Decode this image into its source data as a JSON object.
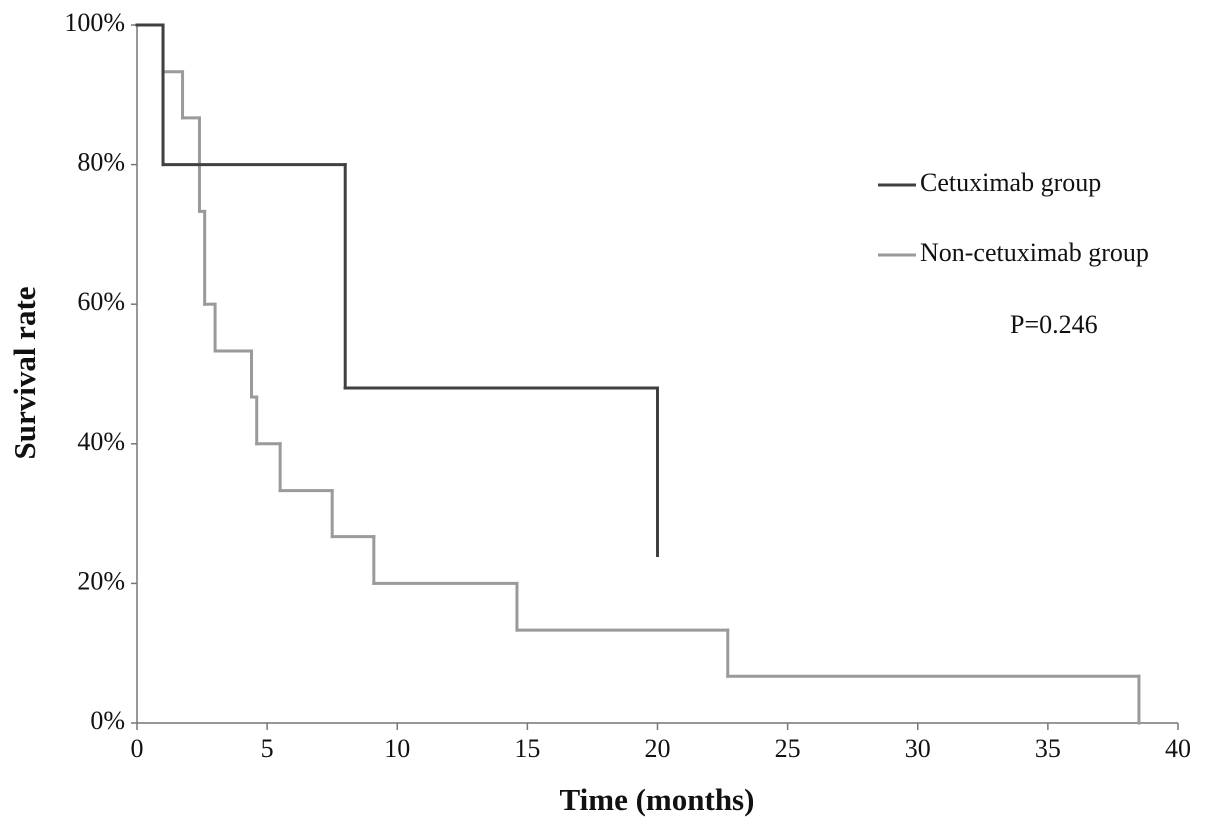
{
  "chart_data": {
    "type": "step",
    "x_label": "Time (months)",
    "y_label": "Survival rate",
    "annotation": "P=0.246",
    "xlim": [
      0,
      40
    ],
    "xticks": [
      0,
      5,
      10,
      15,
      20,
      25,
      30,
      35,
      40
    ],
    "ylim": [
      0,
      100
    ],
    "yticks": [
      {
        "value": 0,
        "label": "0%"
      },
      {
        "value": 20,
        "label": "20%"
      },
      {
        "value": 40,
        "label": "40%"
      },
      {
        "value": 60,
        "label": "60%"
      },
      {
        "value": 80,
        "label": "80%"
      },
      {
        "value": 100,
        "label": "100%"
      }
    ],
    "grid": false,
    "series": [
      {
        "name": "Non-cetuximab group",
        "color": "#9a9a9a",
        "x": [
          0,
          1,
          1.75,
          2.4,
          2.6,
          3,
          4.4,
          4.6,
          5.5,
          7.5,
          9.1,
          14.6,
          22.7,
          38.5
        ],
        "values": [
          100,
          93.3,
          86.7,
          73.3,
          60,
          53.3,
          46.7,
          40,
          33.3,
          26.7,
          20,
          13.3,
          6.7,
          0
        ]
      },
      {
        "name": "Cetuximab group",
        "color": "#404040",
        "x": [
          0,
          1,
          8,
          20
        ],
        "values": [
          100,
          80,
          48,
          24
        ]
      }
    ]
  }
}
